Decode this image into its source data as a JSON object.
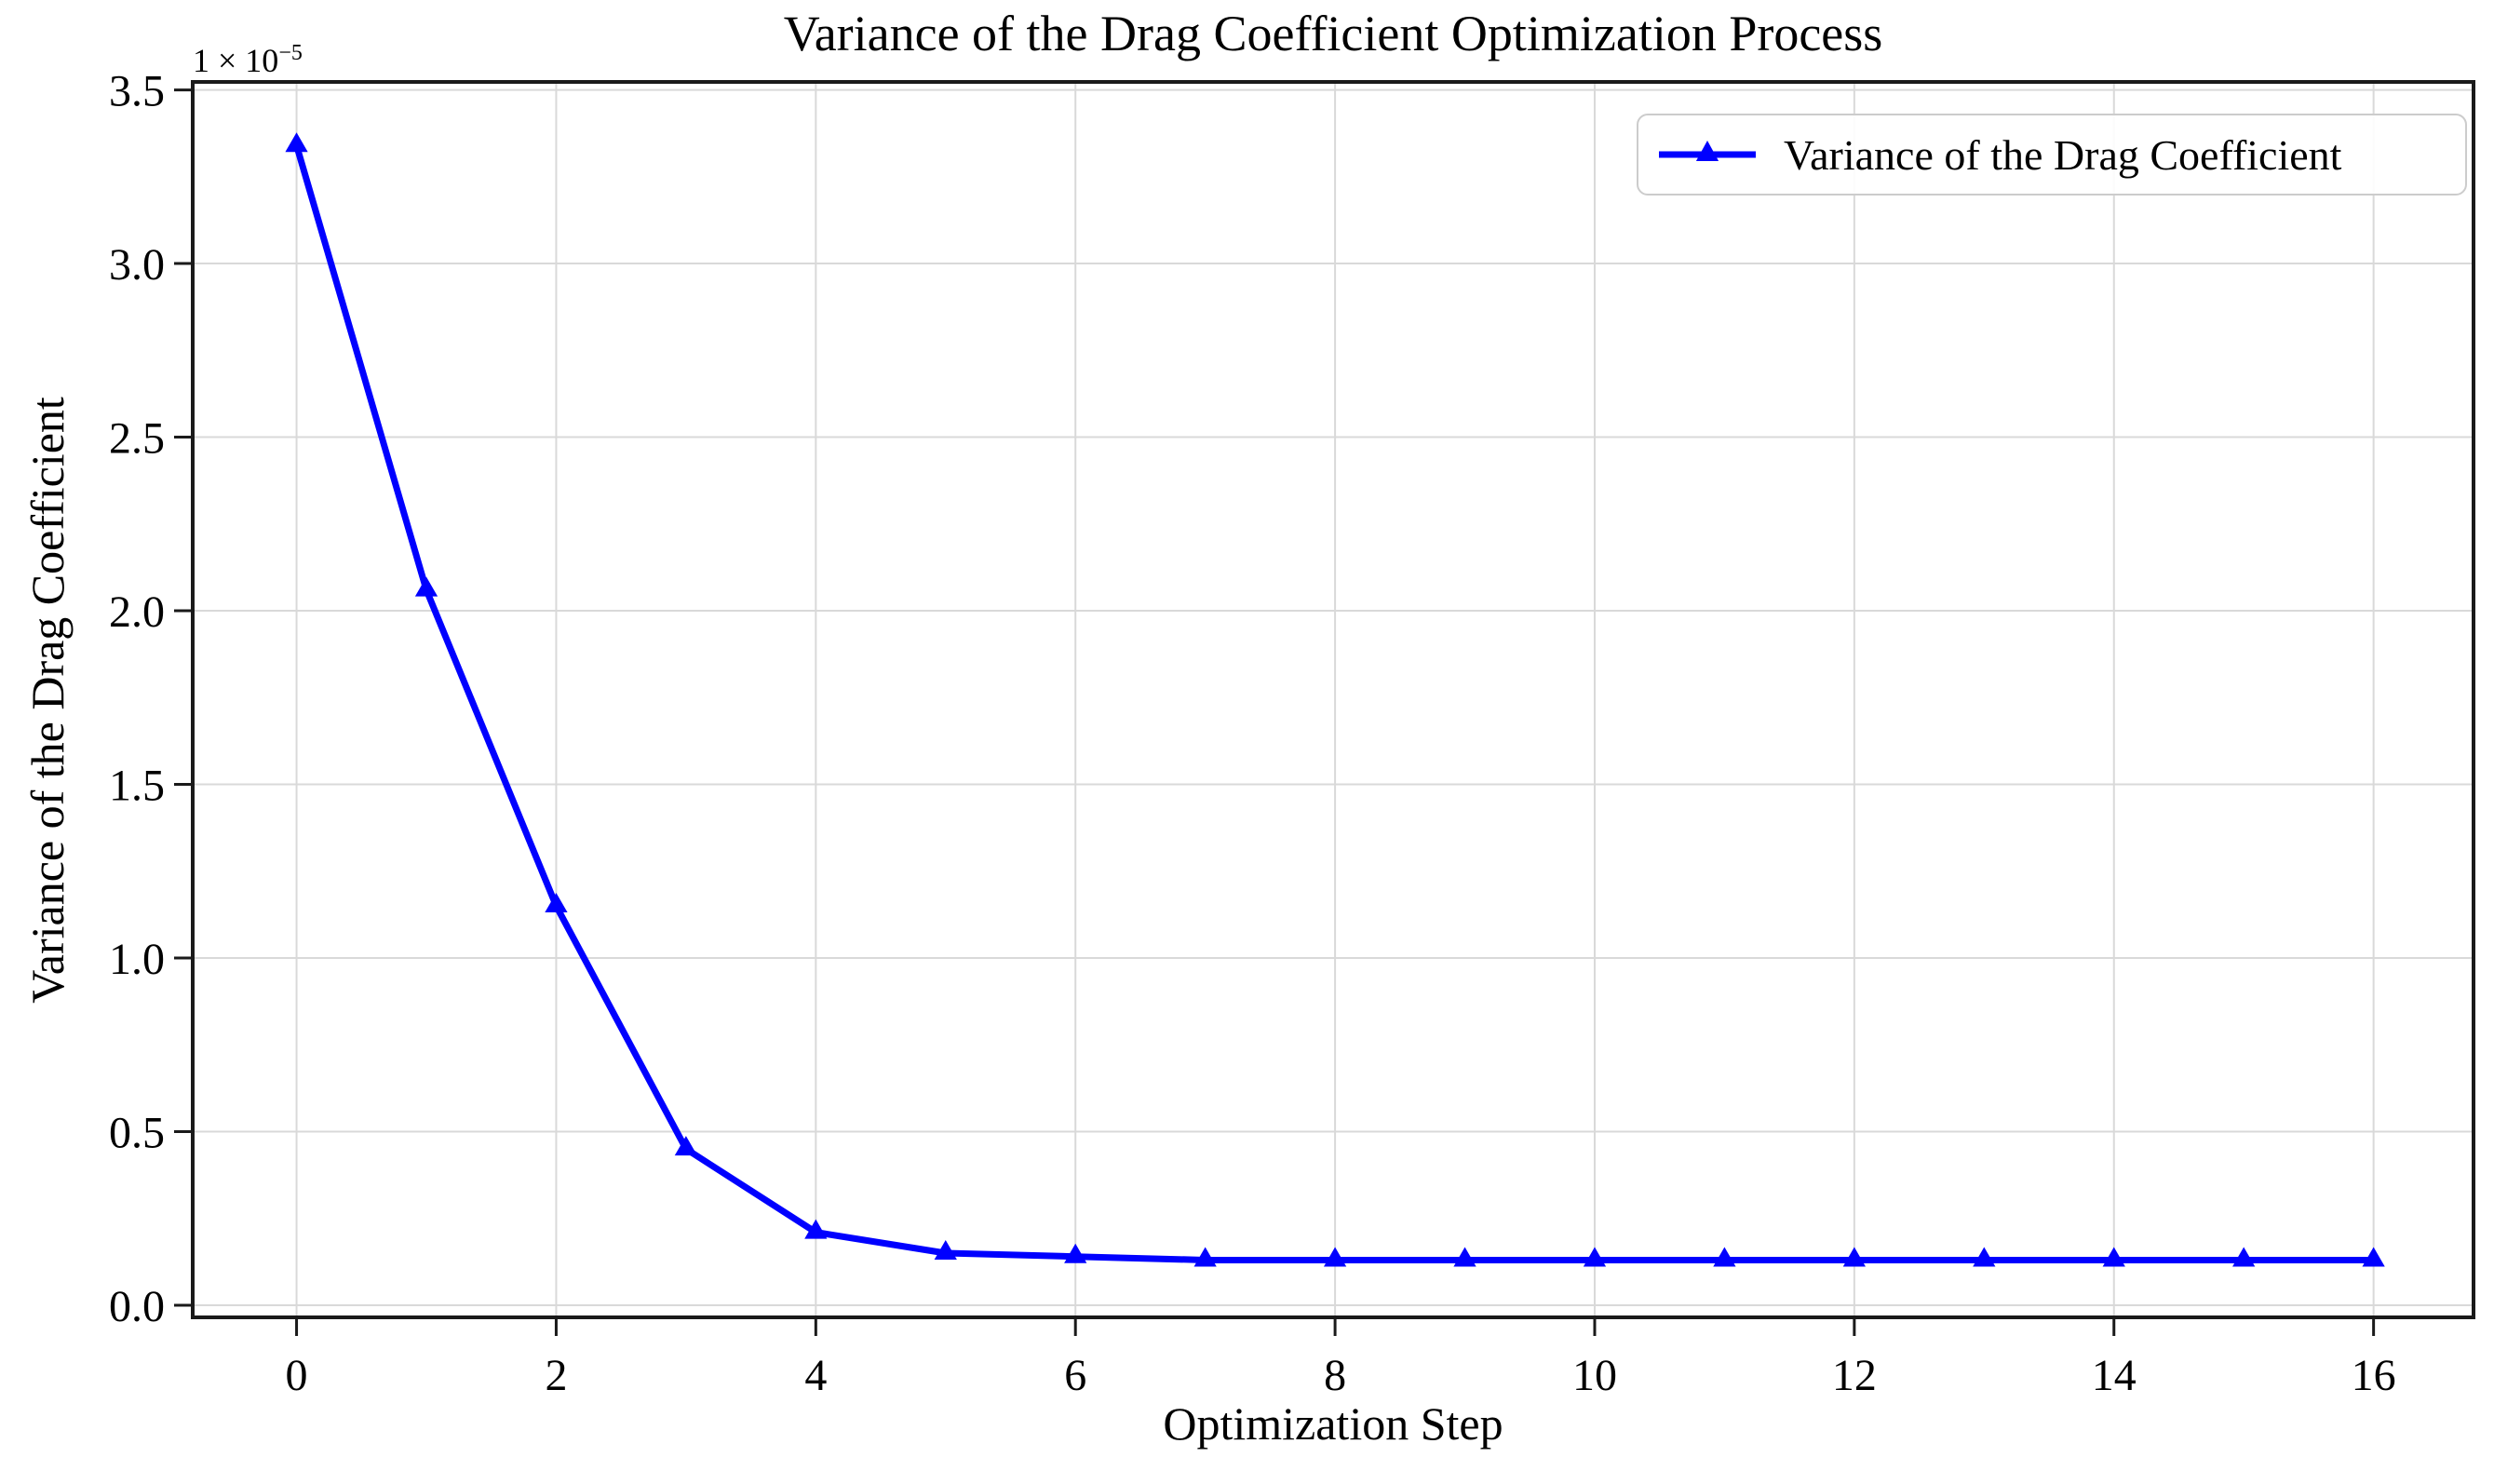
{
  "chart_data": {
    "type": "line",
    "title": "Variance of the Drag Coefficient Optimization Process",
    "xlabel": "Optimization Step",
    "ylabel": "Variance of the Drag Coefficient",
    "y_offset_base": "1 × 10",
    "y_offset_exponent": "−5",
    "y_units_factor": "1e-5",
    "x": [
      0,
      1,
      2,
      3,
      4,
      5,
      6,
      7,
      8,
      9,
      10,
      11,
      12,
      13,
      14,
      15,
      16
    ],
    "series": [
      {
        "name": "Variance of the Drag Coefficient",
        "marker": "triangle-up",
        "values": [
          3.34,
          2.06,
          1.15,
          0.45,
          0.21,
          0.15,
          0.14,
          0.13,
          0.13,
          0.13,
          0.13,
          0.13,
          0.13,
          0.13,
          0.13,
          0.13,
          0.13
        ]
      }
    ],
    "xlim": [
      -0.8,
      16.77
    ],
    "ylim": [
      -0.035,
      3.523
    ],
    "xticks": [
      0,
      2,
      4,
      6,
      8,
      10,
      12,
      14,
      16
    ],
    "yticks": [
      0.0,
      0.5,
      1.0,
      1.5,
      2.0,
      2.5,
      3.0,
      3.5
    ],
    "grid": true,
    "legend": {
      "position": "upper right",
      "label": "Variance of the Drag Coefficient"
    },
    "colors": {
      "line": "#0000FF",
      "grid": "#D9D9D9",
      "spine": "#1A1A1A",
      "text": "#000000",
      "legend_border": "#CCCCCC"
    }
  }
}
